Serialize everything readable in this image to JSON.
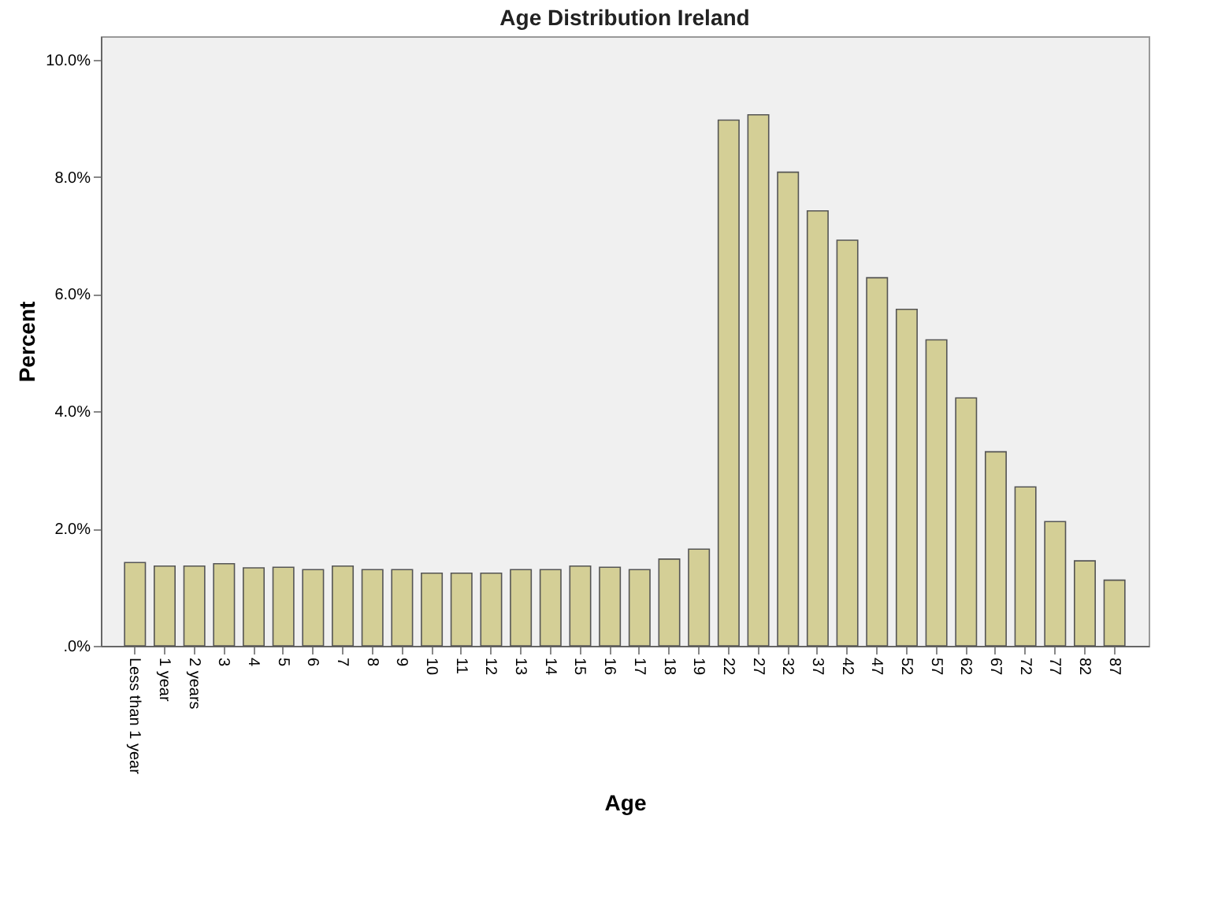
{
  "chart_data": {
    "type": "bar",
    "title": "Age Distribution Ireland",
    "xlabel": "Age",
    "ylabel": "Percent",
    "categories": [
      "Less than 1 year",
      "1 year",
      "2 years",
      "3",
      "4",
      "5",
      "6",
      "7",
      "8",
      "9",
      "10",
      "11",
      "12",
      "13",
      "14",
      "15",
      "16",
      "17",
      "18",
      "19",
      "22",
      "27",
      "32",
      "37",
      "42",
      "47",
      "52",
      "57",
      "62",
      "67",
      "72",
      "77",
      "82",
      "87"
    ],
    "values": [
      1.42,
      1.36,
      1.36,
      1.4,
      1.33,
      1.34,
      1.3,
      1.36,
      1.3,
      1.3,
      1.24,
      1.24,
      1.24,
      1.3,
      1.3,
      1.36,
      1.34,
      1.3,
      1.48,
      1.65,
      8.97,
      9.06,
      8.08,
      7.42,
      6.92,
      6.28,
      5.74,
      5.22,
      4.23,
      3.31,
      2.71,
      2.12,
      1.45,
      1.12
    ],
    "color": "#d4cf96",
    "ylim": [
      0,
      10.4
    ],
    "yticks": [
      {
        "value": 0,
        "label": ".0%"
      },
      {
        "value": 2,
        "label": "2.0%"
      },
      {
        "value": 4,
        "label": "4.0%"
      },
      {
        "value": 6,
        "label": "6.0%"
      },
      {
        "value": 8,
        "label": "8.0%"
      },
      {
        "value": 10,
        "label": "10.0%"
      }
    ],
    "grid": false
  }
}
